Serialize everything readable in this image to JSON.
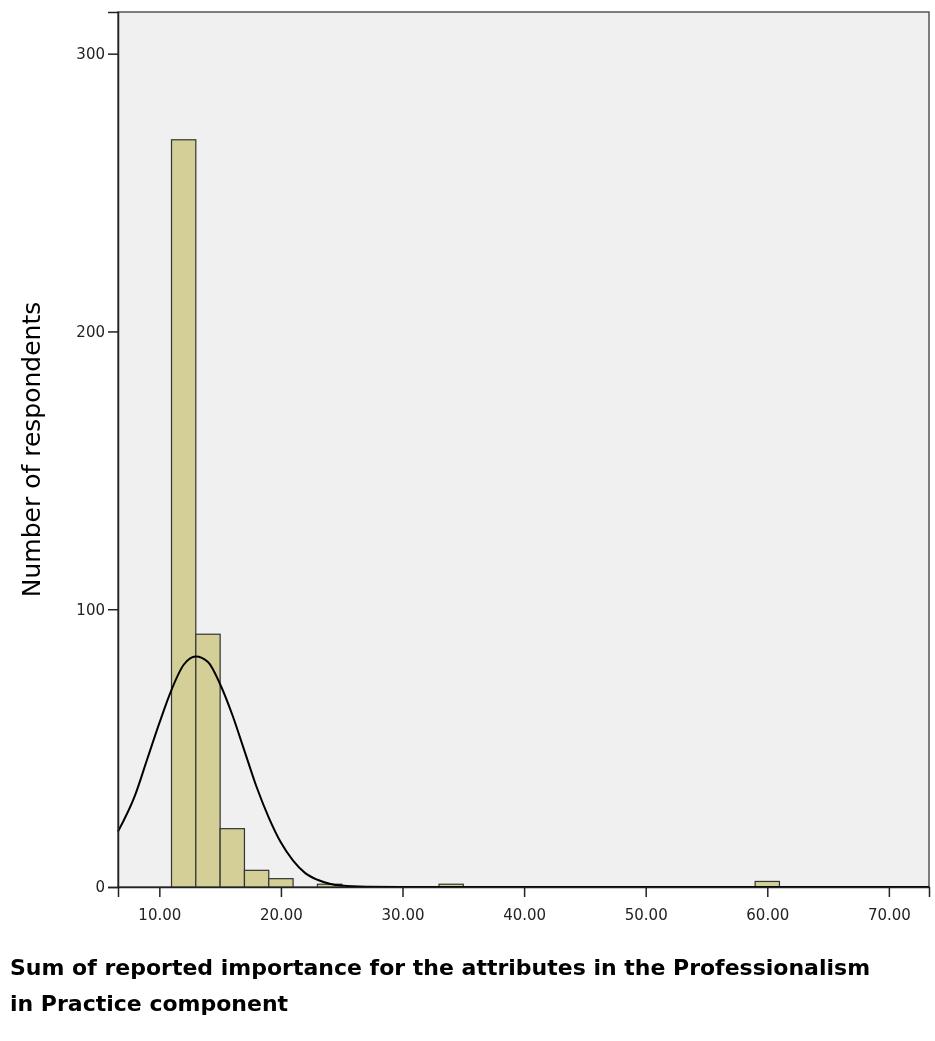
{
  "chart_data": {
    "type": "histogram",
    "xlabel": "Sum of reported importance for the attributes in the Professionalism in Practice component",
    "ylabel": "Number of respondents",
    "bins": [
      11,
      13,
      15,
      17,
      19,
      21,
      23,
      25,
      27,
      29,
      31,
      33,
      35,
      37,
      39,
      41,
      43,
      45,
      47,
      49,
      51,
      53,
      55,
      57,
      59,
      61
    ],
    "values": [
      269,
      91,
      21,
      6,
      3,
      0,
      1,
      0,
      0,
      0,
      0,
      1,
      0,
      0,
      0,
      0,
      0,
      0,
      0,
      0,
      0,
      0,
      0,
      0,
      2
    ],
    "color": "#d3cf97",
    "series": [
      {
        "type": "line",
        "color": "#000000",
        "x": [
          6.6,
          8,
          9,
          10,
          11,
          12,
          13,
          14,
          15,
          16,
          17,
          18,
          19,
          20,
          21,
          22,
          23,
          24,
          25,
          27,
          30,
          73.3
        ],
        "values": [
          20,
          33,
          46,
          59,
          71,
          80,
          83,
          81,
          73,
          62,
          49,
          36,
          25,
          16,
          9.5,
          5,
          2.6,
          1.2,
          0.5,
          0.1,
          0,
          0
        ]
      }
    ],
    "xlim": [
      6.6,
      73.3
    ],
    "ylim": [
      0,
      315
    ],
    "xticks": [
      {
        "value": 10,
        "label": "10.00"
      },
      {
        "value": 20,
        "label": "20.00"
      },
      {
        "value": 30,
        "label": "30.00"
      },
      {
        "value": 40,
        "label": "40.00"
      },
      {
        "value": 50,
        "label": "50.00"
      },
      {
        "value": 60,
        "label": "60.00"
      },
      {
        "value": 70,
        "label": "70.00"
      }
    ],
    "yticks": [
      0,
      100,
      200,
      300
    ]
  }
}
